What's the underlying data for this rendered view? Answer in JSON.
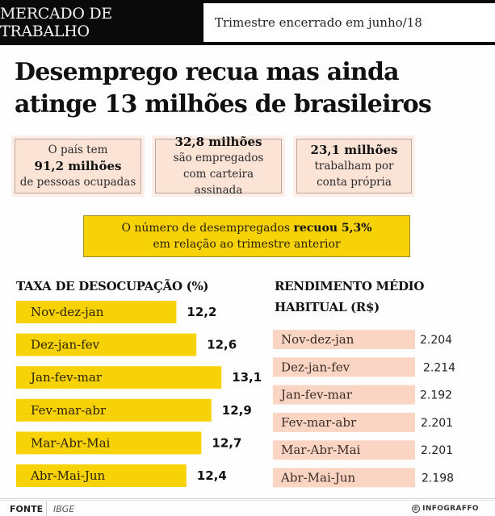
{
  "header": {
    "section_tag": "MERCADO DE TRABALHO",
    "period": "Trimestre encerrado em junho/18"
  },
  "headline": {
    "line1": "Desemprego recua mas ainda",
    "line2": "atinge 13 milhões de brasileiros"
  },
  "stats": [
    {
      "pre": "O país tem",
      "value": "91,2 milhões",
      "post": "de pessoas ocupadas"
    },
    {
      "pre": "",
      "value": "32,8 milhões",
      "post": "são empregados com carteira assinada"
    },
    {
      "pre": "",
      "value": "23,1 milhões",
      "post": "trabalham por conta própria"
    }
  ],
  "callout": {
    "text_before": "O número de desempregados ",
    "highlight": "recuou 5,3%",
    "line2": "em relação ao trimestre anterior"
  },
  "colors": {
    "yellow": "#f7d207",
    "salmon": "#fbd5c3",
    "dark": "#0a0a0a"
  },
  "chart_data": [
    {
      "type": "bar",
      "orientation": "horizontal",
      "title": "TAXA DE DESOCUPAÇÃO (%)",
      "categories": [
        "Nov-dez-jan",
        "Dez-jan-fev",
        "Jan-fev-mar",
        "Fev-mar-abr",
        "Mar-Abr-Mai",
        "Abr-Mai-Jun"
      ],
      "values": [
        12.2,
        12.6,
        13.1,
        12.9,
        12.7,
        12.4
      ],
      "value_labels": [
        "12,2",
        "12,6",
        "13,1",
        "12,9",
        "12,7",
        "12,4"
      ],
      "xlabel": "",
      "ylabel": "",
      "color": "#f7d207"
    },
    {
      "type": "table",
      "title_line1": "RENDIMENTO MÉDIO",
      "title_line2": "HABITUAL (R$)",
      "categories": [
        "Nov-dez-jan",
        "Dez-jan-fev",
        "Jan-fev-mar",
        "Fev-mar-abr",
        "Mar-Abr-Mai",
        "Abr-Mai-Jun"
      ],
      "values": [
        2204,
        2214,
        2192,
        2201,
        2201,
        2198
      ],
      "value_labels": [
        "2.204",
        "2.214",
        "2.192",
        "2.201",
        "2.201",
        "2.198"
      ],
      "color": "#fbd5c3"
    }
  ],
  "footer": {
    "source_label": "FONTE",
    "source": "IBGE",
    "brand": "INFOGRAFFO",
    "brand_symbol": "©"
  }
}
